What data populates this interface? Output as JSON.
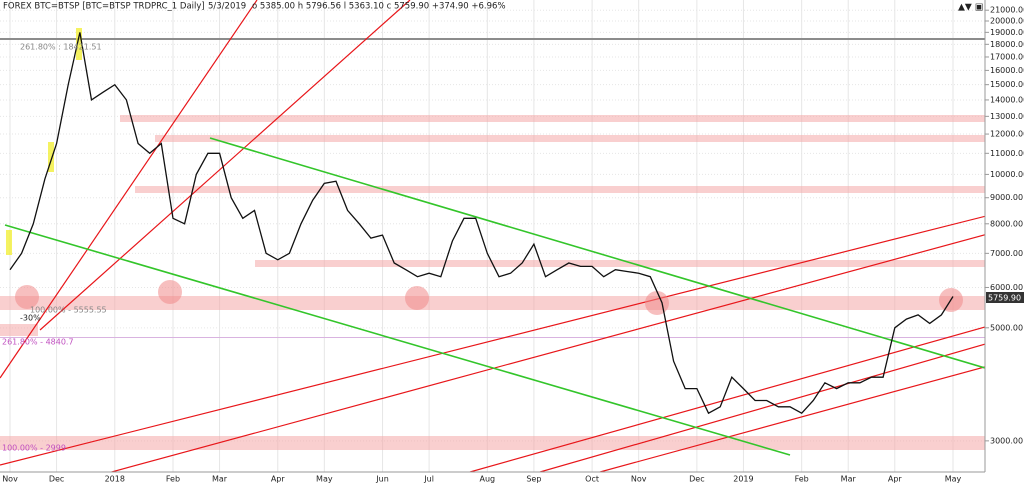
{
  "chart_data": {
    "type": "line",
    "title": "FOREX BTC=BTSP [BTC=BTSP TRDPRC_1 Daily]",
    "date": "5/3/2019",
    "ohlc_label": "o 5385.00  h 5796.56  l 5363.10  c 5759.90  +374.90  +6.96%",
    "last_label": "5759.90",
    "annotations": [
      "261.80% : 18421.51",
      "-30%",
      "100.00% - 5555.55",
      "261.80% - 4840.7",
      "100.00% - 2999"
    ],
    "categories": [
      "Nov",
      null,
      null,
      null,
      "Dec",
      null,
      null,
      null,
      null,
      "2018",
      null,
      null,
      null,
      null,
      "Feb",
      null,
      null,
      null,
      "Mar",
      null,
      null,
      null,
      null,
      "Apr",
      null,
      null,
      null,
      "May",
      null,
      null,
      null,
      null,
      "Jun",
      null,
      null,
      null,
      "Jul",
      null,
      null,
      null,
      null,
      "Aug",
      null,
      null,
      null,
      "Sep",
      null,
      null,
      null,
      null,
      "Oct",
      null,
      null,
      null,
      "Nov",
      null,
      null,
      null,
      null,
      "Dec",
      null,
      null,
      null,
      "2019",
      null,
      null,
      null,
      null,
      "Feb",
      null,
      null,
      null,
      "Mar",
      null,
      null,
      null,
      "Apr",
      null,
      null,
      null,
      null,
      "May"
    ],
    "series": [
      {
        "name": "BTC=BTSP",
        "color": "#111111",
        "values": [
          6500,
          7000,
          8000,
          9800,
          11500,
          15000,
          19000,
          14000,
          14500,
          15000,
          14000,
          11500,
          11000,
          11500,
          8200,
          8000,
          10000,
          11000,
          11000,
          9000,
          8200,
          8500,
          7000,
          6800,
          7000,
          8000,
          8900,
          9600,
          9700,
          8500,
          8000,
          7500,
          7600,
          6700,
          6500,
          6300,
          6400,
          6300,
          7400,
          8200,
          8200,
          7000,
          6300,
          6400,
          6700,
          7300,
          6300,
          6500,
          6700,
          6600,
          6600,
          6300,
          6500,
          6450,
          6400,
          6300,
          5600,
          4300,
          3800,
          3800,
          3400,
          3500,
          4000,
          3800,
          3600,
          3600,
          3500,
          3500,
          3400,
          3600,
          3900,
          3800,
          3900,
          3900,
          4000,
          4000,
          5000,
          5200,
          5300,
          5100,
          5300,
          5760
        ]
      }
    ],
    "ylim": [
      2630,
      21500
    ],
    "log_scale": true,
    "grid": true,
    "yticks": [
      {
        "value": 3000,
        "label": "3000.00"
      },
      {
        "value": 5000,
        "label": "5000.00"
      },
      {
        "value": 6000,
        "label": "6000.00"
      },
      {
        "value": 7000,
        "label": "7000.00"
      },
      {
        "value": 8000,
        "label": "8000.00"
      },
      {
        "value": 9000,
        "label": "9000.00"
      },
      {
        "value": 10000,
        "label": "10000.00"
      },
      {
        "value": 11000,
        "label": "11000.00"
      },
      {
        "value": 12000,
        "label": "12000.00"
      },
      {
        "value": 13000,
        "label": "13000.00"
      },
      {
        "value": 14000,
        "label": "14000.00"
      },
      {
        "value": 15000,
        "label": "15000.00"
      },
      {
        "value": 16000,
        "label": "16000.00"
      },
      {
        "value": 17000,
        "label": "17000.00"
      },
      {
        "value": 18000,
        "label": "18000.00"
      },
      {
        "value": 19000,
        "label": "19000.00"
      },
      {
        "value": 20000,
        "label": "20000.00"
      },
      {
        "value": 21000,
        "label": "21000.00"
      }
    ]
  }
}
